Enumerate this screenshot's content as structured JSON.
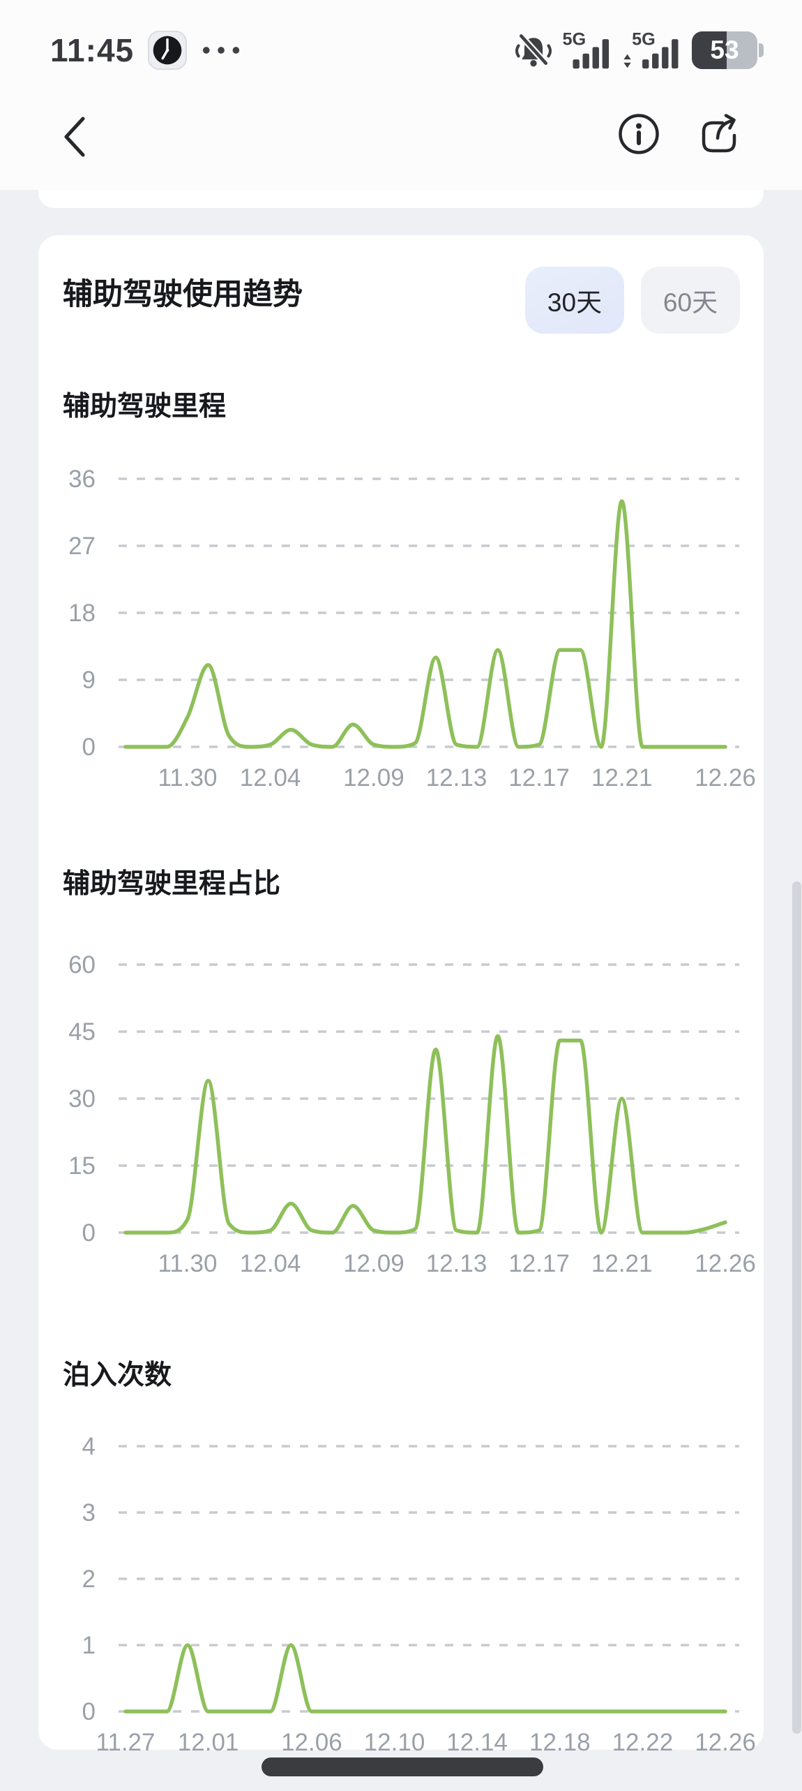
{
  "status_bar": {
    "time": "11:45",
    "network_1": "5G",
    "network_2": "5G",
    "battery_percent": "53"
  },
  "trends": {
    "title": "辅助驾驶使用趋势",
    "range_options": [
      {
        "label": "30天",
        "selected": true
      },
      {
        "label": "60天",
        "selected": false
      }
    ]
  },
  "colors": {
    "line": "#8ec05a",
    "grid": "#c7cad0",
    "axis_label": "#9aa0a8",
    "selected_button_bg": "#e6ebfa",
    "page_bg": "#eff0f4",
    "card_bg": "#ffffff",
    "home_indicator": "#3a3c40"
  },
  "chart_data": [
    {
      "type": "line",
      "title": "辅助驾驶里程",
      "x": [
        "11.27",
        "11.28",
        "11.29",
        "11.30",
        "12.01",
        "12.02",
        "12.03",
        "12.04",
        "12.05",
        "12.06",
        "12.07",
        "12.08",
        "12.09",
        "12.10",
        "12.11",
        "12.12",
        "12.13",
        "12.14",
        "12.15",
        "12.16",
        "12.17",
        "12.18",
        "12.19",
        "12.20",
        "12.21",
        "12.22",
        "12.23",
        "12.24",
        "12.25",
        "12.26"
      ],
      "values": [
        0,
        0,
        0,
        4,
        11,
        1.5,
        0,
        0.3,
        2.3,
        0.3,
        0,
        3,
        0.3,
        0,
        0.5,
        12,
        0.3,
        0,
        13,
        0,
        0.3,
        13,
        13,
        0,
        33,
        0,
        0,
        0,
        0,
        0
      ],
      "ylim": [
        0,
        36
      ],
      "yticks": [
        0,
        9,
        18,
        27,
        36
      ],
      "xtick_labels": [
        "11.30",
        "12.04",
        "12.09",
        "12.13",
        "12.17",
        "12.21",
        "12.26"
      ],
      "xtick_indices": [
        3,
        7,
        12,
        16,
        20,
        24,
        29
      ],
      "grid": "dashed-horizontal",
      "legend": "none",
      "line_color": "#8ec05a"
    },
    {
      "type": "line",
      "title": "辅助驾驶里程占比",
      "x": [
        "11.27",
        "11.28",
        "11.29",
        "11.30",
        "12.01",
        "12.02",
        "12.03",
        "12.04",
        "12.05",
        "12.06",
        "12.07",
        "12.08",
        "12.09",
        "12.10",
        "12.11",
        "12.12",
        "12.13",
        "12.14",
        "12.15",
        "12.16",
        "12.17",
        "12.18",
        "12.19",
        "12.20",
        "12.21",
        "12.22",
        "12.23",
        "12.24",
        "12.25",
        "12.26"
      ],
      "values": [
        0,
        0,
        0,
        3,
        34,
        2,
        0,
        0.5,
        6.5,
        0.5,
        0,
        6,
        0.5,
        0,
        0.8,
        41,
        0.5,
        0,
        44,
        0,
        0.5,
        43,
        43,
        0,
        30,
        0,
        0,
        0,
        0.8,
        2.3
      ],
      "ylim": [
        0,
        60
      ],
      "yticks": [
        0,
        15,
        30,
        45,
        60
      ],
      "xtick_labels": [
        "11.30",
        "12.04",
        "12.09",
        "12.13",
        "12.17",
        "12.21",
        "12.26"
      ],
      "xtick_indices": [
        3,
        7,
        12,
        16,
        20,
        24,
        29
      ],
      "grid": "dashed-horizontal",
      "legend": "none",
      "line_color": "#8ec05a"
    },
    {
      "type": "line",
      "title": "泊入次数",
      "x": [
        "11.27",
        "11.28",
        "11.29",
        "11.30",
        "12.01",
        "12.02",
        "12.03",
        "12.04",
        "12.05",
        "12.06",
        "12.07",
        "12.08",
        "12.09",
        "12.10",
        "12.11",
        "12.12",
        "12.13",
        "12.14",
        "12.15",
        "12.16",
        "12.17",
        "12.18",
        "12.19",
        "12.20",
        "12.21",
        "12.22",
        "12.23",
        "12.24",
        "12.25",
        "12.26"
      ],
      "values": [
        0,
        0,
        0,
        1,
        0,
        0,
        0,
        0,
        1,
        0,
        0,
        0,
        0,
        0,
        0,
        0,
        0,
        0,
        0,
        0,
        0,
        0,
        0,
        0,
        0,
        0,
        0,
        0,
        0,
        0
      ],
      "ylim": [
        0,
        4
      ],
      "yticks": [
        0,
        1,
        2,
        3,
        4
      ],
      "xtick_labels": [
        "11.27",
        "12.01",
        "12.06",
        "12.10",
        "12.14",
        "12.18",
        "12.22",
        "12.26"
      ],
      "xtick_indices": [
        0,
        4,
        9,
        13,
        17,
        21,
        25,
        29
      ],
      "grid": "dashed-horizontal",
      "legend": "none",
      "line_color": "#8ec05a"
    }
  ]
}
